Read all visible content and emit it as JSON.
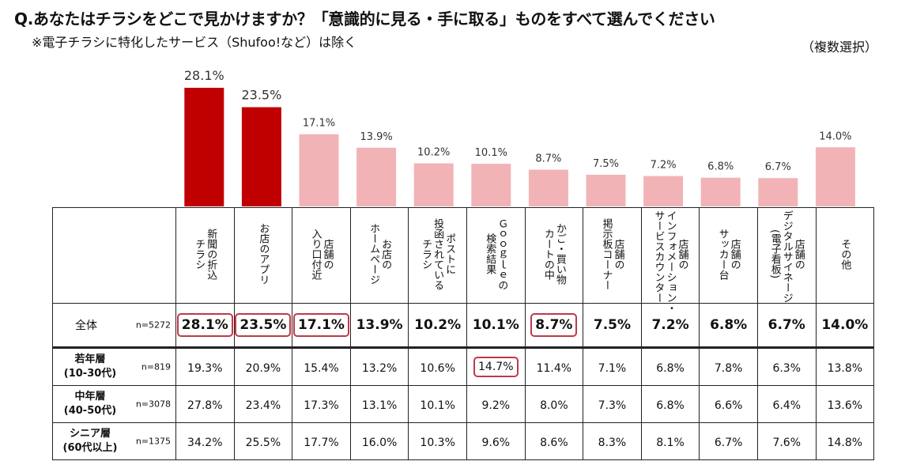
{
  "title": "Q.あなたはチラシをどこで見かけますか？「意識的に見る・手に取る」ものをすべて選んでください",
  "subtitle": "※電子チラシに特化したサービス（Shufoo!など）は除く",
  "note": "（複数選択）",
  "colors": {
    "highlight_bar": "#c00000",
    "normal_bar": "#f2b3b6",
    "highlight_box": "#c0394a"
  },
  "chart_data": {
    "type": "bar",
    "categories": [
      "新聞の折込チラシ",
      "お店のアプリ",
      "店舗の入り口付近",
      "お店のホームページ",
      "ポストに投函されているチラシ",
      "Googleの検索結果",
      "かご・買い物カートの中",
      "店舗の掲示板コーナー",
      "店舗のインフォメーション・サービスカウンター",
      "店舗のサッカー台",
      "店舗のデジタルサイネージ(電子看板)",
      "その他"
    ],
    "values": [
      28.1,
      23.5,
      17.1,
      13.9,
      10.2,
      10.1,
      8.7,
      7.5,
      7.2,
      6.8,
      6.7,
      14.0
    ],
    "value_labels": [
      "28.1%",
      "23.5%",
      "17.1%",
      "13.9%",
      "10.2%",
      "10.1%",
      "8.7%",
      "7.5%",
      "7.2%",
      "6.8%",
      "6.7%",
      "14.0%"
    ],
    "highlight": [
      true,
      true,
      false,
      false,
      false,
      false,
      false,
      false,
      false,
      false,
      false,
      false
    ],
    "ylim": [
      0,
      30
    ]
  },
  "table": {
    "headers": [
      "新聞の折込\nチラシ",
      "お店のアプリ",
      "店舗の\n入り口付近",
      "お店の\nホームページ",
      "ポストに\n投函されている\nチラシ",
      "Ｇｏｏｇｌｅの\n検索結果",
      "かご・買い物\nカートの中",
      "店舗の\n掲示板コーナー",
      "店舗の\nインフォメーション・\nサービスカウンター",
      "店舗の\nサッカー台",
      "店舗の\nデジタルサイネージ\n(電子看板)",
      "その他"
    ],
    "rows": [
      {
        "label": "全体",
        "n": "n=5272",
        "values": [
          "28.1%",
          "23.5%",
          "17.1%",
          "13.9%",
          "10.2%",
          "10.1%",
          "8.7%",
          "7.5%",
          "7.2%",
          "6.8%",
          "6.7%",
          "14.0%"
        ],
        "highlight": [
          true,
          true,
          true,
          false,
          false,
          false,
          true,
          false,
          false,
          false,
          false,
          false
        ]
      },
      {
        "label": "若年層",
        "sub": "(10-30代)",
        "n": "n=819",
        "values": [
          "19.3%",
          "20.9%",
          "15.4%",
          "13.2%",
          "10.6%",
          "14.7%",
          "11.4%",
          "7.1%",
          "6.8%",
          "7.8%",
          "6.3%",
          "13.8%"
        ],
        "highlight": [
          false,
          false,
          false,
          false,
          false,
          true,
          false,
          false,
          false,
          false,
          false,
          false
        ]
      },
      {
        "label": "中年層",
        "sub": "(40-50代)",
        "n": "n=3078",
        "values": [
          "27.8%",
          "23.4%",
          "17.3%",
          "13.1%",
          "10.1%",
          "9.2%",
          "8.0%",
          "7.3%",
          "6.8%",
          "6.6%",
          "6.4%",
          "13.6%"
        ],
        "highlight": [
          false,
          false,
          false,
          false,
          false,
          false,
          false,
          false,
          false,
          false,
          false,
          false
        ]
      },
      {
        "label": "シニア層",
        "sub": "(60代以上)",
        "n": "n=1375",
        "values": [
          "34.2%",
          "25.5%",
          "17.7%",
          "16.0%",
          "10.3%",
          "9.6%",
          "8.6%",
          "8.3%",
          "8.1%",
          "6.7%",
          "7.6%",
          "14.8%"
        ],
        "highlight": [
          false,
          false,
          false,
          false,
          false,
          false,
          false,
          false,
          false,
          false,
          false,
          false
        ]
      }
    ]
  }
}
